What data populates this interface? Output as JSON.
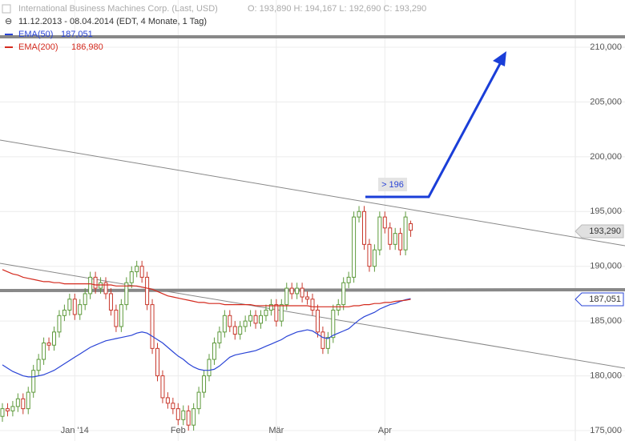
{
  "chart_data": {
    "type": "candlestick",
    "title": "International Business Machines Corp. (Last, USD)",
    "quote": "O: 193,890  H: 194,167  L: 192,690  C: 193,290",
    "subtitle": "11.12.2013 - 08.04.2014 (EDT, 4 Monate, 1 Tag)",
    "ylim": [
      174.05,
      214.31
    ],
    "yticks": [
      {
        "value": 175,
        "label": "175,000"
      },
      {
        "value": 180,
        "label": "180,000"
      },
      {
        "value": 185,
        "label": "185,000"
      },
      {
        "value": 190,
        "label": "190,000"
      },
      {
        "value": 195,
        "label": "195,000"
      },
      {
        "value": 200,
        "label": "200,000"
      },
      {
        "value": 205,
        "label": "205,000"
      },
      {
        "value": 210,
        "label": "210,000"
      }
    ],
    "xticks": [
      {
        "value": 14,
        "label": "Jan '14"
      },
      {
        "value": 34,
        "label": "Feb"
      },
      {
        "value": 53,
        "label": "Mär"
      },
      {
        "value": 74,
        "label": "Apr"
      }
    ],
    "grid": true,
    "up_color": "#5e9a3c",
    "down_color": "#c8382c",
    "open": [
      176.3,
      177.0,
      176.8,
      177.2,
      177.9,
      177.0,
      178.5,
      180.5,
      181.5,
      183.0,
      182.8,
      184.0,
      185.5,
      186.0,
      187.0,
      185.6,
      186.5,
      187.5,
      189.0,
      188.0,
      188.5,
      187.5,
      186.0,
      184.5,
      186.5,
      188.5,
      189.5,
      190.0,
      189.0,
      186.5,
      182.5,
      180.0,
      178.0,
      177.5,
      177.0,
      176.0,
      176.8,
      175.5,
      177.0,
      178.5,
      180.0,
      181.5,
      183.0,
      184.0,
      185.5,
      184.5,
      183.8,
      184.5,
      185.0,
      185.5,
      184.8,
      185.5,
      186.0,
      186.5,
      185.0,
      186.5,
      188.0,
      187.5,
      188.0,
      187.2,
      187.0,
      186.0,
      184.0,
      182.5,
      183.5,
      186.0,
      186.5,
      188.5,
      189.0,
      194.5,
      195.0,
      192.0,
      190.0,
      191.5,
      194.5,
      193.5,
      192.0,
      193.0,
      191.5,
      193.89
    ],
    "high": [
      177.5,
      177.5,
      177.7,
      178.4,
      178.4,
      179.0,
      181.0,
      182.0,
      183.5,
      183.5,
      184.5,
      186.0,
      186.5,
      187.5,
      187.5,
      187.0,
      188.0,
      189.5,
      189.5,
      189.0,
      189.0,
      188.0,
      186.5,
      187.0,
      189.0,
      190.0,
      190.5,
      190.5,
      189.5,
      187.0,
      183.0,
      180.5,
      178.5,
      178.0,
      177.5,
      177.3,
      177.3,
      177.5,
      179.0,
      180.5,
      182.0,
      183.5,
      184.5,
      186.0,
      186.0,
      185.0,
      185.0,
      185.5,
      186.0,
      186.0,
      186.0,
      186.5,
      187.0,
      187.0,
      187.0,
      188.5,
      188.5,
      188.5,
      188.5,
      187.7,
      187.5,
      186.5,
      184.5,
      184.0,
      186.5,
      187.0,
      189.0,
      189.5,
      195.0,
      195.5,
      195.5,
      192.5,
      192.0,
      195.0,
      195.0,
      194.0,
      193.5,
      193.5,
      195.0,
      194.167
    ],
    "low": [
      175.8,
      176.3,
      176.3,
      176.7,
      176.5,
      176.5,
      178.0,
      180.0,
      181.0,
      182.3,
      182.3,
      183.5,
      185.0,
      185.5,
      185.1,
      185.1,
      186.0,
      187.0,
      187.5,
      187.5,
      187.0,
      185.5,
      184.0,
      184.0,
      186.0,
      188.0,
      189.0,
      188.5,
      186.0,
      182.0,
      179.5,
      177.5,
      177.0,
      176.5,
      175.5,
      175.5,
      175.0,
      175.0,
      176.5,
      178.0,
      179.5,
      181.0,
      182.5,
      183.5,
      184.0,
      183.3,
      183.3,
      184.0,
      184.5,
      184.3,
      184.3,
      185.0,
      185.5,
      184.5,
      184.5,
      186.0,
      187.0,
      187.0,
      186.7,
      186.5,
      185.5,
      183.5,
      182.0,
      182.0,
      183.0,
      185.5,
      186.0,
      188.0,
      188.5,
      194.0,
      191.5,
      189.5,
      189.5,
      191.0,
      193.0,
      191.5,
      191.5,
      191.0,
      191.0,
      192.69
    ],
    "close": [
      177.0,
      176.8,
      177.2,
      177.9,
      177.0,
      178.5,
      180.5,
      181.5,
      183.0,
      182.8,
      184.0,
      185.5,
      186.0,
      187.0,
      185.6,
      186.5,
      187.5,
      189.0,
      188.0,
      188.5,
      187.5,
      186.0,
      184.5,
      186.5,
      188.5,
      189.5,
      190.0,
      189.0,
      186.5,
      182.5,
      180.0,
      178.0,
      177.5,
      177.0,
      176.0,
      176.8,
      175.5,
      177.0,
      178.5,
      180.0,
      181.5,
      183.0,
      184.0,
      185.5,
      184.5,
      183.8,
      184.5,
      185.0,
      185.5,
      184.8,
      185.5,
      186.0,
      186.5,
      185.0,
      186.5,
      188.0,
      187.5,
      188.0,
      187.2,
      187.0,
      186.0,
      184.0,
      182.5,
      183.5,
      186.0,
      186.5,
      188.5,
      189.0,
      194.5,
      195.0,
      192.0,
      190.0,
      191.5,
      194.5,
      193.5,
      192.0,
      193.0,
      191.5,
      194.5,
      193.29
    ],
    "series": [
      {
        "name": "EMA(50)",
        "last_label": "187,051",
        "color": "#2a44d6",
        "values": [
          181.0,
          180.7,
          180.4,
          180.2,
          180.0,
          179.9,
          179.9,
          180.0,
          180.1,
          180.3,
          180.5,
          180.8,
          181.1,
          181.4,
          181.7,
          182.0,
          182.3,
          182.6,
          182.8,
          183.0,
          183.2,
          183.3,
          183.4,
          183.5,
          183.6,
          183.7,
          183.9,
          184.0,
          183.9,
          183.6,
          183.3,
          183.0,
          182.6,
          182.2,
          181.8,
          181.5,
          181.1,
          180.8,
          180.6,
          180.5,
          180.5,
          180.6,
          180.9,
          181.3,
          181.7,
          181.9,
          182.0,
          182.1,
          182.2,
          182.3,
          182.5,
          182.7,
          182.9,
          183.1,
          183.3,
          183.6,
          183.8,
          184.0,
          184.1,
          184.2,
          184.1,
          183.8,
          183.5,
          183.4,
          183.7,
          183.9,
          184.1,
          184.3,
          184.7,
          185.1,
          185.4,
          185.6,
          185.8,
          186.1,
          186.3,
          186.5,
          186.6,
          186.8,
          186.95,
          187.051
        ]
      },
      {
        "name": "EMA(200)",
        "last_label": "186,980",
        "color": "#d42a1e",
        "values": [
          189.7,
          189.5,
          189.3,
          189.2,
          189.0,
          188.9,
          188.8,
          188.7,
          188.6,
          188.6,
          188.5,
          188.5,
          188.4,
          188.4,
          188.4,
          188.4,
          188.4,
          188.4,
          188.3,
          188.3,
          188.3,
          188.3,
          188.2,
          188.2,
          188.2,
          188.2,
          188.2,
          188.1,
          188.0,
          187.9,
          187.7,
          187.5,
          187.3,
          187.2,
          187.1,
          187.0,
          186.9,
          186.8,
          186.7,
          186.7,
          186.6,
          186.6,
          186.6,
          186.5,
          186.5,
          186.5,
          186.5,
          186.5,
          186.5,
          186.4,
          186.4,
          186.4,
          186.4,
          186.4,
          186.4,
          186.4,
          186.4,
          186.4,
          186.4,
          186.4,
          186.3,
          186.3,
          186.3,
          186.3,
          186.3,
          186.3,
          186.3,
          186.3,
          186.4,
          186.4,
          186.5,
          186.5,
          186.6,
          186.6,
          186.7,
          186.7,
          186.8,
          186.85,
          186.9,
          186.98
        ]
      }
    ],
    "last_price_label": "193,290",
    "target_label": "> 196"
  }
}
